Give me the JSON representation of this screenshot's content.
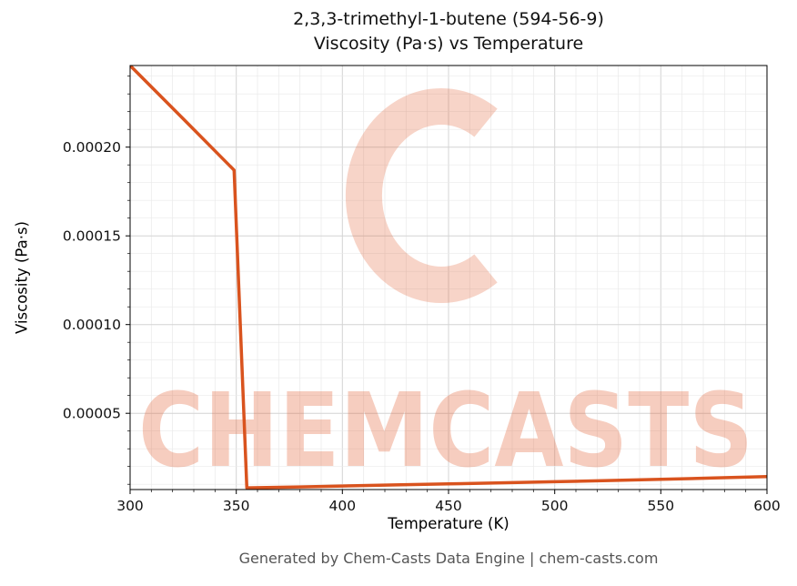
{
  "title": {
    "line1": "2,3,3-trimethyl-1-butene (594-56-9)",
    "line2": "Viscosity (Pa·s) vs Temperature"
  },
  "footer": "Generated by Chem-Casts Data Engine | chem-casts.com",
  "watermark": {
    "text": "CHEMCASTS",
    "logo": "chemcasts-c-logo",
    "color": "#e2592a"
  },
  "chart_data": {
    "type": "line",
    "title": "2,3,3-trimethyl-1-butene (594-56-9) — Viscosity (Pa·s) vs Temperature",
    "xlabel": "Temperature (K)",
    "ylabel": "Viscosity (Pa·s)",
    "xlim": [
      300,
      600
    ],
    "ylim": [
      7e-06,
      0.000246
    ],
    "x_ticks": [
      300,
      350,
      400,
      450,
      500,
      550,
      600
    ],
    "x_tick_labels": [
      "300",
      "350",
      "400",
      "450",
      "500",
      "550",
      "600"
    ],
    "y_ticks": [
      5e-05,
      0.0001,
      0.00015,
      0.0002
    ],
    "y_tick_labels": [
      "0.00005",
      "0.00010",
      "0.00015",
      "0.00020"
    ],
    "x_minor_step": 10,
    "y_minor_step": 1e-05,
    "grid": true,
    "legend": "none",
    "line_color": "#d9531e",
    "series": [
      {
        "name": "viscosity",
        "points": [
          [
            300,
            0.000246
          ],
          [
            325,
            0.000216
          ],
          [
            349,
            0.000187
          ],
          [
            355,
            8e-06
          ],
          [
            380,
            8.5e-06
          ],
          [
            400,
            9e-06
          ],
          [
            425,
            9.6e-06
          ],
          [
            450,
            1.02e-05
          ],
          [
            475,
            1.08e-05
          ],
          [
            500,
            1.14e-05
          ],
          [
            525,
            1.21e-05
          ],
          [
            550,
            1.28e-05
          ],
          [
            575,
            1.35e-05
          ],
          [
            600,
            1.43e-05
          ]
        ]
      }
    ]
  }
}
